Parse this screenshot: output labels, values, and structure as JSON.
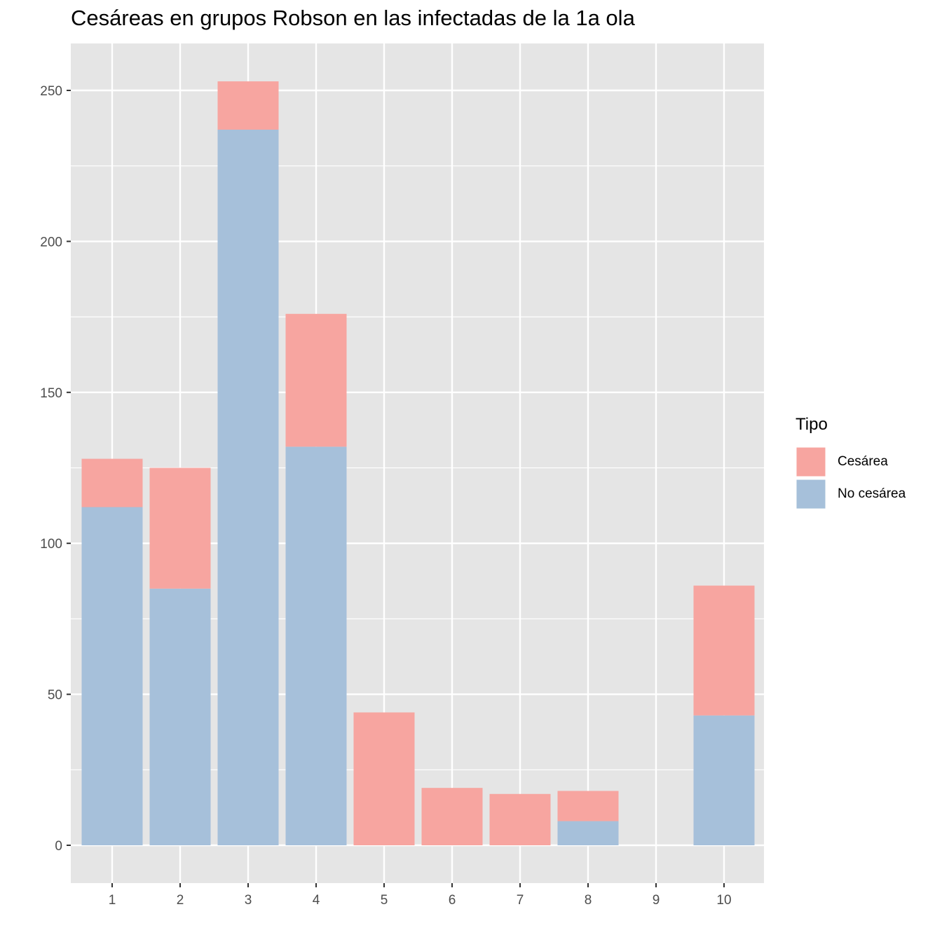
{
  "chart_data": {
    "type": "bar",
    "stacked": true,
    "title": "Cesáreas en grupos Robson en las infectadas de la 1a ola",
    "xlabel": "",
    "ylabel": "",
    "categories": [
      "1",
      "2",
      "3",
      "4",
      "5",
      "6",
      "7",
      "8",
      "9",
      "10"
    ],
    "series": [
      {
        "name": "No cesárea",
        "color": "#A6C0DA",
        "values": [
          112,
          85,
          237,
          132,
          0,
          0,
          0,
          8,
          0,
          43
        ]
      },
      {
        "name": "Cesárea",
        "color": "#F7A5A0",
        "values": [
          16,
          40,
          16,
          44,
          44,
          19,
          17,
          10,
          0,
          43
        ]
      }
    ],
    "ylim": [
      -13,
      265
    ],
    "yticks": [
      0,
      50,
      100,
      150,
      200,
      250
    ],
    "grid": true,
    "legend": {
      "title": "Tipo",
      "position": "right",
      "entries": [
        {
          "label": "Cesárea",
          "color": "#F7A5A0"
        },
        {
          "label": "No cesárea",
          "color": "#A6C0DA"
        }
      ]
    },
    "panel_background": "#E5E5E5",
    "grid_color": "#FFFFFF"
  }
}
